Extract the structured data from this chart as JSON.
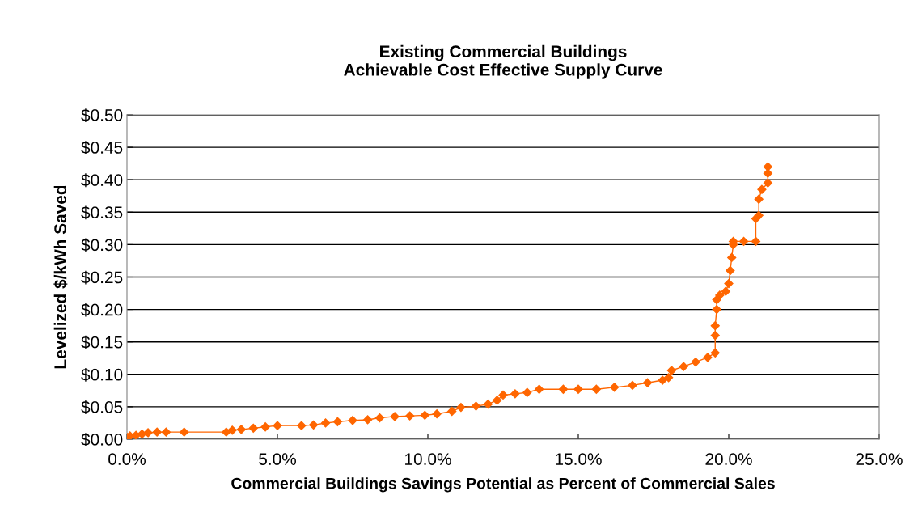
{
  "chart_data": {
    "type": "line",
    "title": "Existing Commercial Buildings\nAchievable Cost Effective Supply Curve",
    "xlabel": "Commercial Buildings Savings Potential as Percent of Commercial Sales",
    "ylabel": "Levelized $/kWh Saved",
    "series": [
      {
        "color": "#ff6600",
        "x": [
          0.0,
          0.1,
          0.3,
          0.5,
          0.7,
          1.0,
          1.3,
          1.9,
          3.3,
          3.5,
          3.8,
          4.2,
          4.6,
          5.0,
          5.8,
          6.2,
          6.6,
          7.0,
          7.5,
          8.0,
          8.4,
          8.9,
          9.4,
          9.9,
          10.3,
          10.8,
          11.1,
          11.6,
          12.0,
          12.3,
          12.5,
          12.9,
          13.3,
          13.7,
          14.5,
          15.0,
          15.6,
          16.2,
          16.8,
          17.3,
          17.8,
          18.0,
          18.1,
          18.5,
          18.9,
          19.3,
          19.55,
          19.55,
          19.55,
          19.6,
          19.6,
          19.7,
          19.9,
          20.0,
          20.05,
          20.1,
          20.15,
          20.15,
          20.5,
          20.9,
          20.9,
          21.0,
          21.0,
          21.1,
          21.3,
          21.3,
          21.3
        ],
        "values": [
          0.003,
          0.005,
          0.006,
          0.008,
          0.01,
          0.011,
          0.011,
          0.011,
          0.011,
          0.014,
          0.015,
          0.017,
          0.019,
          0.021,
          0.021,
          0.022,
          0.025,
          0.027,
          0.029,
          0.03,
          0.033,
          0.035,
          0.036,
          0.037,
          0.039,
          0.043,
          0.049,
          0.051,
          0.054,
          0.06,
          0.068,
          0.07,
          0.072,
          0.077,
          0.077,
          0.077,
          0.077,
          0.08,
          0.083,
          0.087,
          0.091,
          0.095,
          0.106,
          0.112,
          0.119,
          0.126,
          0.133,
          0.16,
          0.175,
          0.2,
          0.215,
          0.222,
          0.228,
          0.24,
          0.26,
          0.28,
          0.3,
          0.305,
          0.305,
          0.305,
          0.34,
          0.345,
          0.37,
          0.385,
          0.395,
          0.41,
          0.42
        ]
      }
    ],
    "xlim": [
      0,
      25
    ],
    "xticks": [
      {
        "value": 0,
        "label": "0.0%"
      },
      {
        "value": 5,
        "label": "5.0%"
      },
      {
        "value": 10,
        "label": "10.0%"
      },
      {
        "value": 15,
        "label": "15.0%"
      },
      {
        "value": 20,
        "label": "20.0%"
      },
      {
        "value": 25,
        "label": "25.0%"
      }
    ],
    "ylim": [
      0,
      0.5
    ],
    "yticks": [
      {
        "value": 0,
        "label": "$0.00"
      },
      {
        "value": 0.05,
        "label": "$0.05"
      },
      {
        "value": 0.1,
        "label": "$0.10"
      },
      {
        "value": 0.15,
        "label": "$0.15"
      },
      {
        "value": 0.2,
        "label": "$0.20"
      },
      {
        "value": 0.25,
        "label": "$0.25"
      },
      {
        "value": 0.3,
        "label": "$0.30"
      },
      {
        "value": 0.35,
        "label": "$0.35"
      },
      {
        "value": 0.4,
        "label": "$0.40"
      },
      {
        "value": 0.45,
        "label": "$0.45"
      },
      {
        "value": 0.5,
        "label": "$0.50"
      }
    ],
    "grid": "y",
    "marker": "diamond",
    "line_style": "solid",
    "legend": false
  }
}
